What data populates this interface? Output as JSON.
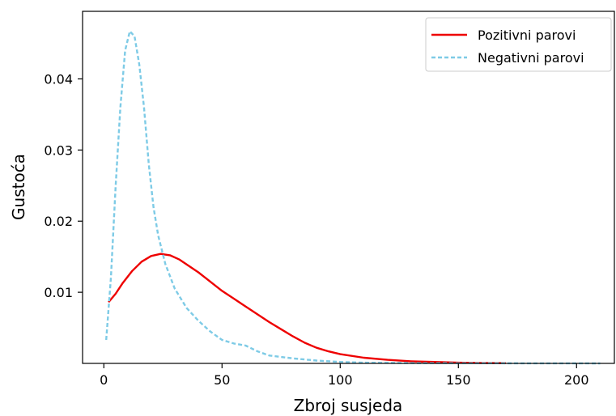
{
  "chart_data": {
    "type": "line",
    "title": "",
    "xlabel": "Zbroj susjeda",
    "ylabel": "Gustoća",
    "xlim": [
      -9,
      216
    ],
    "ylim": [
      0.0,
      0.0495
    ],
    "grid": false,
    "legend_position": "top-right",
    "x_ticks": [
      {
        "value": 0,
        "label": "0"
      },
      {
        "value": 50,
        "label": "50"
      },
      {
        "value": 100,
        "label": "100"
      },
      {
        "value": 150,
        "label": "150"
      },
      {
        "value": 200,
        "label": "200"
      }
    ],
    "y_ticks": [
      {
        "value": 0.01,
        "label": "0.01"
      },
      {
        "value": 0.02,
        "label": "0.02"
      },
      {
        "value": 0.03,
        "label": "0.03"
      },
      {
        "value": 0.04,
        "label": "0.04"
      }
    ],
    "series": [
      {
        "name": "Pozitivni parovi",
        "color": "#ee0000",
        "style": "solid",
        "points": [
          [
            2,
            0.0086
          ],
          [
            5,
            0.0098
          ],
          [
            8,
            0.0113
          ],
          [
            12,
            0.013
          ],
          [
            16,
            0.0143
          ],
          [
            20,
            0.0151
          ],
          [
            24,
            0.0154
          ],
          [
            28,
            0.0152
          ],
          [
            32,
            0.0146
          ],
          [
            36,
            0.0137
          ],
          [
            40,
            0.0128
          ],
          [
            45,
            0.0115
          ],
          [
            50,
            0.0102
          ],
          [
            55,
            0.0091
          ],
          [
            60,
            0.008
          ],
          [
            65,
            0.0069
          ],
          [
            70,
            0.0058
          ],
          [
            75,
            0.0048
          ],
          [
            80,
            0.0038
          ],
          [
            85,
            0.0029
          ],
          [
            90,
            0.0022
          ],
          [
            95,
            0.0017
          ],
          [
            100,
            0.0013
          ],
          [
            110,
            0.0008
          ],
          [
            120,
            0.0005
          ],
          [
            130,
            0.0003
          ],
          [
            140,
            0.0002
          ],
          [
            150,
            0.0001
          ],
          [
            160,
            5e-05
          ],
          [
            170,
            3e-05
          ]
        ]
      },
      {
        "name": "Negativni parovi",
        "color": "#7ecbe6",
        "style": "dashed",
        "points": [
          [
            1,
            0.0033
          ],
          [
            3,
            0.012
          ],
          [
            5,
            0.025
          ],
          [
            7,
            0.036
          ],
          [
            9,
            0.044
          ],
          [
            11,
            0.0467
          ],
          [
            13,
            0.046
          ],
          [
            15,
            0.042
          ],
          [
            17,
            0.036
          ],
          [
            19,
            0.028
          ],
          [
            21,
            0.022
          ],
          [
            23,
            0.018
          ],
          [
            26,
            0.014
          ],
          [
            30,
            0.0105
          ],
          [
            35,
            0.0078
          ],
          [
            40,
            0.006
          ],
          [
            45,
            0.0045
          ],
          [
            50,
            0.0033
          ],
          [
            55,
            0.0028
          ],
          [
            60,
            0.0025
          ],
          [
            65,
            0.0017
          ],
          [
            70,
            0.0011
          ],
          [
            80,
            0.0007
          ],
          [
            90,
            0.0004
          ],
          [
            100,
            0.0002
          ],
          [
            110,
            0.0001
          ],
          [
            130,
            5e-05
          ],
          [
            150,
            2e-05
          ],
          [
            180,
            1e-05
          ],
          [
            210,
            0.0
          ]
        ]
      }
    ]
  }
}
